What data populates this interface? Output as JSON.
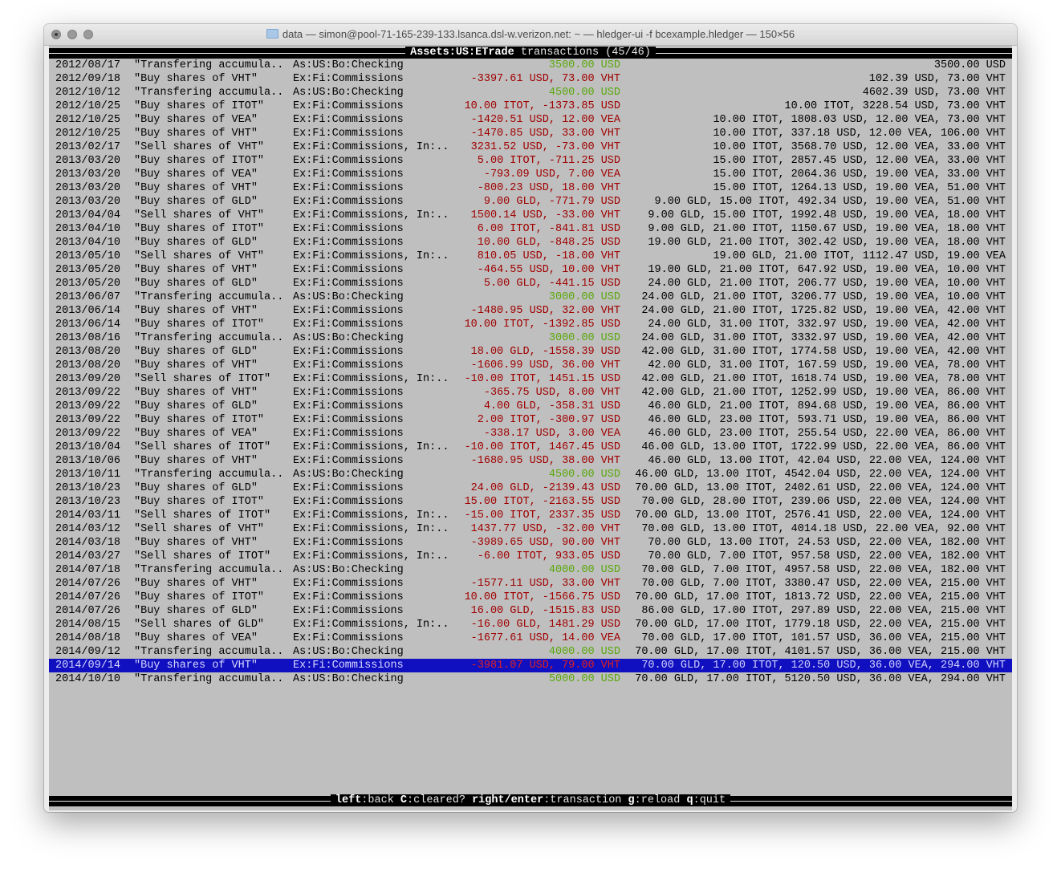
{
  "window": {
    "title": "data — simon@pool-71-165-239-133.lsanca.dsl-w.verizon.net: ~ — hledger-ui -f bcexample.hledger — 150×56"
  },
  "header": {
    "account": "Assets:US:ETrade",
    "suffix": "transactions",
    "position": "(45/46)"
  },
  "colors": {
    "positive": "#5aa80c",
    "negative": "#a00000",
    "selection": "#1010c0",
    "background": "#bfbfbf"
  },
  "selected_index": 44,
  "rows": [
    {
      "date": "2012/08/17",
      "desc": "\"Transfering accumula..",
      "account": "As:US:Bo:Checking",
      "amount": "3500.00 USD",
      "positive": true,
      "balance": "3500.00 USD"
    },
    {
      "date": "2012/09/18",
      "desc": "\"Buy shares of VHT\"",
      "account": "Ex:Fi:Commissions",
      "amount": "-3397.61 USD, 73.00 VHT",
      "positive": false,
      "balance": "102.39 USD, 73.00 VHT"
    },
    {
      "date": "2012/10/12",
      "desc": "\"Transfering accumula..",
      "account": "As:US:Bo:Checking",
      "amount": "4500.00 USD",
      "positive": true,
      "balance": "4602.39 USD, 73.00 VHT"
    },
    {
      "date": "2012/10/25",
      "desc": "\"Buy shares of ITOT\"",
      "account": "Ex:Fi:Commissions",
      "amount": "10.00 ITOT, -1373.85 USD",
      "positive": false,
      "balance": "10.00 ITOT, 3228.54 USD, 73.00 VHT"
    },
    {
      "date": "2012/10/25",
      "desc": "\"Buy shares of VEA\"",
      "account": "Ex:Fi:Commissions",
      "amount": "-1420.51 USD, 12.00 VEA",
      "positive": false,
      "balance": "10.00 ITOT, 1808.03 USD, 12.00 VEA, 73.00 VHT"
    },
    {
      "date": "2012/10/25",
      "desc": "\"Buy shares of VHT\"",
      "account": "Ex:Fi:Commissions",
      "amount": "-1470.85 USD, 33.00 VHT",
      "positive": false,
      "balance": "10.00 ITOT, 337.18 USD, 12.00 VEA, 106.00 VHT"
    },
    {
      "date": "2013/02/17",
      "desc": "\"Sell shares of VHT\"",
      "account": "Ex:Fi:Commissions, In:..",
      "amount": "3231.52 USD, -73.00 VHT",
      "positive": false,
      "balance": "10.00 ITOT, 3568.70 USD, 12.00 VEA, 33.00 VHT"
    },
    {
      "date": "2013/03/20",
      "desc": "\"Buy shares of ITOT\"",
      "account": "Ex:Fi:Commissions",
      "amount": "5.00 ITOT, -711.25 USD",
      "positive": false,
      "balance": "15.00 ITOT, 2857.45 USD, 12.00 VEA, 33.00 VHT"
    },
    {
      "date": "2013/03/20",
      "desc": "\"Buy shares of VEA\"",
      "account": "Ex:Fi:Commissions",
      "amount": "-793.09 USD, 7.00 VEA",
      "positive": false,
      "balance": "15.00 ITOT, 2064.36 USD, 19.00 VEA, 33.00 VHT"
    },
    {
      "date": "2013/03/20",
      "desc": "\"Buy shares of VHT\"",
      "account": "Ex:Fi:Commissions",
      "amount": "-800.23 USD, 18.00 VHT",
      "positive": false,
      "balance": "15.00 ITOT, 1264.13 USD, 19.00 VEA, 51.00 VHT"
    },
    {
      "date": "2013/03/20",
      "desc": "\"Buy shares of GLD\"",
      "account": "Ex:Fi:Commissions",
      "amount": "9.00 GLD, -771.79 USD",
      "positive": false,
      "balance": "9.00 GLD, 15.00 ITOT, 492.34 USD, 19.00 VEA, 51.00 VHT"
    },
    {
      "date": "2013/04/04",
      "desc": "\"Sell shares of VHT\"",
      "account": "Ex:Fi:Commissions, In:..",
      "amount": "1500.14 USD, -33.00 VHT",
      "positive": false,
      "balance": "9.00 GLD, 15.00 ITOT, 1992.48 USD, 19.00 VEA, 18.00 VHT"
    },
    {
      "date": "2013/04/10",
      "desc": "\"Buy shares of ITOT\"",
      "account": "Ex:Fi:Commissions",
      "amount": "6.00 ITOT, -841.81 USD",
      "positive": false,
      "balance": "9.00 GLD, 21.00 ITOT, 1150.67 USD, 19.00 VEA, 18.00 VHT"
    },
    {
      "date": "2013/04/10",
      "desc": "\"Buy shares of GLD\"",
      "account": "Ex:Fi:Commissions",
      "amount": "10.00 GLD, -848.25 USD",
      "positive": false,
      "balance": "19.00 GLD, 21.00 ITOT, 302.42 USD, 19.00 VEA, 18.00 VHT"
    },
    {
      "date": "2013/05/10",
      "desc": "\"Sell shares of VHT\"",
      "account": "Ex:Fi:Commissions, In:..",
      "amount": "810.05 USD, -18.00 VHT",
      "positive": false,
      "balance": "19.00 GLD, 21.00 ITOT, 1112.47 USD, 19.00 VEA"
    },
    {
      "date": "2013/05/20",
      "desc": "\"Buy shares of VHT\"",
      "account": "Ex:Fi:Commissions",
      "amount": "-464.55 USD, 10.00 VHT",
      "positive": false,
      "balance": "19.00 GLD, 21.00 ITOT, 647.92 USD, 19.00 VEA, 10.00 VHT"
    },
    {
      "date": "2013/05/20",
      "desc": "\"Buy shares of GLD\"",
      "account": "Ex:Fi:Commissions",
      "amount": "5.00 GLD, -441.15 USD",
      "positive": false,
      "balance": "24.00 GLD, 21.00 ITOT, 206.77 USD, 19.00 VEA, 10.00 VHT"
    },
    {
      "date": "2013/06/07",
      "desc": "\"Transfering accumula..",
      "account": "As:US:Bo:Checking",
      "amount": "3000.00 USD",
      "positive": true,
      "balance": "24.00 GLD, 21.00 ITOT, 3206.77 USD, 19.00 VEA, 10.00 VHT"
    },
    {
      "date": "2013/06/14",
      "desc": "\"Buy shares of VHT\"",
      "account": "Ex:Fi:Commissions",
      "amount": "-1480.95 USD, 32.00 VHT",
      "positive": false,
      "balance": "24.00 GLD, 21.00 ITOT, 1725.82 USD, 19.00 VEA, 42.00 VHT"
    },
    {
      "date": "2013/06/14",
      "desc": "\"Buy shares of ITOT\"",
      "account": "Ex:Fi:Commissions",
      "amount": "10.00 ITOT, -1392.85 USD",
      "positive": false,
      "balance": "24.00 GLD, 31.00 ITOT, 332.97 USD, 19.00 VEA, 42.00 VHT"
    },
    {
      "date": "2013/08/16",
      "desc": "\"Transfering accumula..",
      "account": "As:US:Bo:Checking",
      "amount": "3000.00 USD",
      "positive": true,
      "balance": "24.00 GLD, 31.00 ITOT, 3332.97 USD, 19.00 VEA, 42.00 VHT"
    },
    {
      "date": "2013/08/20",
      "desc": "\"Buy shares of GLD\"",
      "account": "Ex:Fi:Commissions",
      "amount": "18.00 GLD, -1558.39 USD",
      "positive": false,
      "balance": "42.00 GLD, 31.00 ITOT, 1774.58 USD, 19.00 VEA, 42.00 VHT"
    },
    {
      "date": "2013/08/20",
      "desc": "\"Buy shares of VHT\"",
      "account": "Ex:Fi:Commissions",
      "amount": "-1606.99 USD, 36.00 VHT",
      "positive": false,
      "balance": "42.00 GLD, 31.00 ITOT, 167.59 USD, 19.00 VEA, 78.00 VHT"
    },
    {
      "date": "2013/09/20",
      "desc": "\"Sell shares of ITOT\"",
      "account": "Ex:Fi:Commissions, In:..",
      "amount": "-10.00 ITOT, 1451.15 USD",
      "positive": false,
      "balance": "42.00 GLD, 21.00 ITOT, 1618.74 USD, 19.00 VEA, 78.00 VHT"
    },
    {
      "date": "2013/09/22",
      "desc": "\"Buy shares of VHT\"",
      "account": "Ex:Fi:Commissions",
      "amount": "-365.75 USD, 8.00 VHT",
      "positive": false,
      "balance": "42.00 GLD, 21.00 ITOT, 1252.99 USD, 19.00 VEA, 86.00 VHT"
    },
    {
      "date": "2013/09/22",
      "desc": "\"Buy shares of GLD\"",
      "account": "Ex:Fi:Commissions",
      "amount": "4.00 GLD, -358.31 USD",
      "positive": false,
      "balance": "46.00 GLD, 21.00 ITOT, 894.68 USD, 19.00 VEA, 86.00 VHT"
    },
    {
      "date": "2013/09/22",
      "desc": "\"Buy shares of ITOT\"",
      "account": "Ex:Fi:Commissions",
      "amount": "2.00 ITOT, -300.97 USD",
      "positive": false,
      "balance": "46.00 GLD, 23.00 ITOT, 593.71 USD, 19.00 VEA, 86.00 VHT"
    },
    {
      "date": "2013/09/22",
      "desc": "\"Buy shares of VEA\"",
      "account": "Ex:Fi:Commissions",
      "amount": "-338.17 USD, 3.00 VEA",
      "positive": false,
      "balance": "46.00 GLD, 23.00 ITOT, 255.54 USD, 22.00 VEA, 86.00 VHT"
    },
    {
      "date": "2013/10/04",
      "desc": "\"Sell shares of ITOT\"",
      "account": "Ex:Fi:Commissions, In:..",
      "amount": "-10.00 ITOT, 1467.45 USD",
      "positive": false,
      "balance": "46.00 GLD, 13.00 ITOT, 1722.99 USD, 22.00 VEA, 86.00 VHT"
    },
    {
      "date": "2013/10/06",
      "desc": "\"Buy shares of VHT\"",
      "account": "Ex:Fi:Commissions",
      "amount": "-1680.95 USD, 38.00 VHT",
      "positive": false,
      "balance": "46.00 GLD, 13.00 ITOT, 42.04 USD, 22.00 VEA, 124.00 VHT"
    },
    {
      "date": "2013/10/11",
      "desc": "\"Transfering accumula..",
      "account": "As:US:Bo:Checking",
      "amount": "4500.00 USD",
      "positive": true,
      "balance": "46.00 GLD, 13.00 ITOT, 4542.04 USD, 22.00 VEA, 124.00 VHT"
    },
    {
      "date": "2013/10/23",
      "desc": "\"Buy shares of GLD\"",
      "account": "Ex:Fi:Commissions",
      "amount": "24.00 GLD, -2139.43 USD",
      "positive": false,
      "balance": "70.00 GLD, 13.00 ITOT, 2402.61 USD, 22.00 VEA, 124.00 VHT"
    },
    {
      "date": "2013/10/23",
      "desc": "\"Buy shares of ITOT\"",
      "account": "Ex:Fi:Commissions",
      "amount": "15.00 ITOT, -2163.55 USD",
      "positive": false,
      "balance": "70.00 GLD, 28.00 ITOT, 239.06 USD, 22.00 VEA, 124.00 VHT"
    },
    {
      "date": "2014/03/11",
      "desc": "\"Sell shares of ITOT\"",
      "account": "Ex:Fi:Commissions, In:..",
      "amount": "-15.00 ITOT, 2337.35 USD",
      "positive": false,
      "balance": "70.00 GLD, 13.00 ITOT, 2576.41 USD, 22.00 VEA, 124.00 VHT"
    },
    {
      "date": "2014/03/12",
      "desc": "\"Sell shares of VHT\"",
      "account": "Ex:Fi:Commissions, In:..",
      "amount": "1437.77 USD, -32.00 VHT",
      "positive": false,
      "balance": "70.00 GLD, 13.00 ITOT, 4014.18 USD, 22.00 VEA, 92.00 VHT"
    },
    {
      "date": "2014/03/18",
      "desc": "\"Buy shares of VHT\"",
      "account": "Ex:Fi:Commissions",
      "amount": "-3989.65 USD, 90.00 VHT",
      "positive": false,
      "balance": "70.00 GLD, 13.00 ITOT, 24.53 USD, 22.00 VEA, 182.00 VHT"
    },
    {
      "date": "2014/03/27",
      "desc": "\"Sell shares of ITOT\"",
      "account": "Ex:Fi:Commissions, In:..",
      "amount": "-6.00 ITOT, 933.05 USD",
      "positive": false,
      "balance": "70.00 GLD, 7.00 ITOT, 957.58 USD, 22.00 VEA, 182.00 VHT"
    },
    {
      "date": "2014/07/18",
      "desc": "\"Transfering accumula..",
      "account": "As:US:Bo:Checking",
      "amount": "4000.00 USD",
      "positive": true,
      "balance": "70.00 GLD, 7.00 ITOT, 4957.58 USD, 22.00 VEA, 182.00 VHT"
    },
    {
      "date": "2014/07/26",
      "desc": "\"Buy shares of VHT\"",
      "account": "Ex:Fi:Commissions",
      "amount": "-1577.11 USD, 33.00 VHT",
      "positive": false,
      "balance": "70.00 GLD, 7.00 ITOT, 3380.47 USD, 22.00 VEA, 215.00 VHT"
    },
    {
      "date": "2014/07/26",
      "desc": "\"Buy shares of ITOT\"",
      "account": "Ex:Fi:Commissions",
      "amount": "10.00 ITOT, -1566.75 USD",
      "positive": false,
      "balance": "70.00 GLD, 17.00 ITOT, 1813.72 USD, 22.00 VEA, 215.00 VHT"
    },
    {
      "date": "2014/07/26",
      "desc": "\"Buy shares of GLD\"",
      "account": "Ex:Fi:Commissions",
      "amount": "16.00 GLD, -1515.83 USD",
      "positive": false,
      "balance": "86.00 GLD, 17.00 ITOT, 297.89 USD, 22.00 VEA, 215.00 VHT"
    },
    {
      "date": "2014/08/15",
      "desc": "\"Sell shares of GLD\"",
      "account": "Ex:Fi:Commissions, In:..",
      "amount": "-16.00 GLD, 1481.29 USD",
      "positive": false,
      "balance": "70.00 GLD, 17.00 ITOT, 1779.18 USD, 22.00 VEA, 215.00 VHT"
    },
    {
      "date": "2014/08/18",
      "desc": "\"Buy shares of VEA\"",
      "account": "Ex:Fi:Commissions",
      "amount": "-1677.61 USD, 14.00 VEA",
      "positive": false,
      "balance": "70.00 GLD, 17.00 ITOT, 101.57 USD, 36.00 VEA, 215.00 VHT"
    },
    {
      "date": "2014/09/12",
      "desc": "\"Transfering accumula..",
      "account": "As:US:Bo:Checking",
      "amount": "4000.00 USD",
      "positive": true,
      "balance": "70.00 GLD, 17.00 ITOT, 4101.57 USD, 36.00 VEA, 215.00 VHT"
    },
    {
      "date": "2014/09/14",
      "desc": "\"Buy shares of VHT\"",
      "account": "Ex:Fi:Commissions",
      "amount": "-3981.07 USD, 79.00 VHT",
      "positive": false,
      "balance": "70.00 GLD, 17.00 ITOT, 120.50 USD, 36.00 VEA, 294.00 VHT"
    },
    {
      "date": "2014/10/10",
      "desc": "\"Transfering accumula..",
      "account": "As:US:Bo:Checking",
      "amount": "5000.00 USD",
      "positive": true,
      "balance": "70.00 GLD, 17.00 ITOT, 5120.50 USD, 36.00 VEA, 294.00 VHT"
    }
  ],
  "footer": {
    "keys": [
      {
        "key": "left",
        "action": "back"
      },
      {
        "key": "C",
        "action": "cleared?"
      },
      {
        "key": "right/enter",
        "action": "transaction"
      },
      {
        "key": "g",
        "action": "reload"
      },
      {
        "key": "q",
        "action": "quit"
      }
    ]
  }
}
